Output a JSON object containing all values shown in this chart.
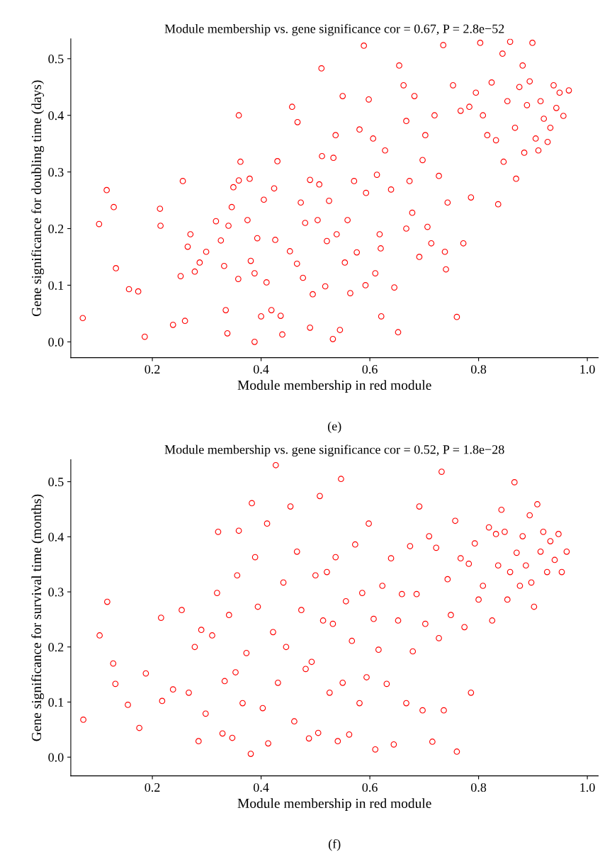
{
  "chart_data": [
    {
      "type": "scatter",
      "title": "Module membership vs. gene significance cor = 0.67, P = 2.8e−52",
      "xlabel": "Module membership in red module",
      "ylabel": "Gene significance for doubling time (days)",
      "annotations": [
        "(e)"
      ],
      "marker": "circle",
      "grid": false,
      "legend": false,
      "xlim": [
        0.05,
        1.02
      ],
      "ylim": [
        -0.028,
        0.535
      ],
      "xticks": [
        0.2,
        0.4,
        0.6,
        0.8,
        {
          "value": 1.0,
          "label": "1.0"
        }
      ],
      "yticks": [
        {
          "value": 0.0,
          "label": "0.0"
        },
        0.1,
        0.2,
        0.3,
        0.4,
        0.5
      ],
      "series": [
        {
          "color": "#ff0000",
          "x": [
            0.072,
            0.102,
            0.116,
            0.129,
            0.133,
            0.157,
            0.174,
            0.186,
            0.214,
            0.215,
            0.238,
            0.252,
            0.256,
            0.26,
            0.27,
            0.265,
            0.278,
            0.287,
            0.299,
            0.317,
            0.326,
            0.332,
            0.335,
            0.338,
            0.34,
            0.346,
            0.349,
            0.358,
            0.359,
            0.359,
            0.362,
            0.375,
            0.379,
            0.381,
            0.388,
            0.388,
            0.393,
            0.4,
            0.405,
            0.41,
            0.419,
            0.424,
            0.426,
            0.43,
            0.436,
            0.439,
            0.453,
            0.457,
            0.466,
            0.467,
            0.473,
            0.477,
            0.481,
            0.49,
            0.49,
            0.495,
            0.504,
            0.507,
            0.511,
            0.512,
            0.518,
            0.521,
            0.525,
            0.532,
            0.533,
            0.537,
            0.539,
            0.545,
            0.55,
            0.554,
            0.559,
            0.564,
            0.571,
            0.576,
            0.581,
            0.589,
            0.592,
            0.593,
            0.598,
            0.606,
            0.61,
            0.613,
            0.618,
            0.62,
            0.621,
            0.628,
            0.639,
            0.645,
            0.652,
            0.654,
            0.662,
            0.667,
            0.667,
            0.673,
            0.678,
            0.682,
            0.691,
            0.697,
            0.702,
            0.706,
            0.713,
            0.719,
            0.727,
            0.735,
            0.738,
            0.74,
            0.743,
            0.753,
            0.76,
            0.767,
            0.772,
            0.783,
            0.786,
            0.795,
            0.803,
            0.808,
            0.816,
            0.824,
            0.832,
            0.836,
            0.844,
            0.846,
            0.853,
            0.858,
            0.867,
            0.869,
            0.875,
            0.881,
            0.884,
            0.889,
            0.894,
            0.899,
            0.905,
            0.91,
            0.914,
            0.92,
            0.927,
            0.932,
            0.938,
            0.943,
            0.949,
            0.956,
            0.966
          ],
          "values": [
            0.042,
            0.208,
            0.268,
            0.238,
            0.13,
            0.093,
            0.089,
            0.009,
            0.235,
            0.205,
            0.03,
            0.116,
            0.284,
            0.037,
            0.19,
            0.168,
            0.124,
            0.14,
            0.159,
            0.213,
            0.179,
            0.134,
            0.056,
            0.015,
            0.205,
            0.238,
            0.273,
            0.111,
            0.4,
            0.285,
            0.318,
            0.215,
            0.288,
            0.143,
            0.0,
            0.121,
            0.183,
            0.045,
            0.251,
            0.105,
            0.056,
            0.271,
            0.18,
            0.319,
            0.046,
            0.013,
            0.16,
            0.415,
            0.138,
            0.388,
            0.246,
            0.113,
            0.21,
            0.286,
            0.025,
            0.084,
            0.215,
            0.278,
            0.483,
            0.328,
            0.098,
            0.178,
            0.249,
            0.005,
            0.325,
            0.365,
            0.19,
            0.021,
            0.434,
            0.14,
            0.215,
            0.086,
            0.284,
            0.158,
            0.375,
            0.523,
            0.1,
            0.263,
            0.428,
            0.359,
            0.121,
            0.295,
            0.19,
            0.165,
            0.045,
            0.338,
            0.269,
            0.096,
            0.017,
            0.488,
            0.453,
            0.2,
            0.39,
            0.284,
            0.228,
            0.434,
            0.15,
            0.321,
            0.365,
            0.203,
            0.174,
            0.4,
            0.293,
            0.524,
            0.159,
            0.128,
            0.246,
            0.453,
            0.044,
            0.408,
            0.174,
            0.415,
            0.255,
            0.44,
            0.528,
            0.4,
            0.365,
            0.458,
            0.356,
            0.243,
            0.509,
            0.318,
            0.425,
            0.53,
            0.378,
            0.288,
            0.45,
            0.488,
            0.334,
            0.418,
            0.46,
            0.528,
            0.359,
            0.338,
            0.425,
            0.394,
            0.353,
            0.378,
            0.453,
            0.413,
            0.44,
            0.399,
            0.444
          ]
        }
      ]
    },
    {
      "type": "scatter",
      "title": "Module membership vs. gene significance cor = 0.52, P = 1.8e−28",
      "xlabel": "Module membership in red module",
      "ylabel": "Gene significance for survival time (months)",
      "annotations": [
        "(f)"
      ],
      "marker": "circle",
      "grid": false,
      "legend": false,
      "xlim": [
        0.05,
        1.02
      ],
      "ylim": [
        -0.034,
        0.54
      ],
      "xticks": [
        0.2,
        0.4,
        0.6,
        0.8,
        {
          "value": 1.0,
          "label": "1.0"
        }
      ],
      "yticks": [
        {
          "value": 0.0,
          "label": "0.0"
        },
        0.1,
        0.2,
        0.3,
        0.4,
        0.5
      ],
      "series": [
        {
          "color": "#ff0000",
          "x": [
            0.073,
            0.103,
            0.117,
            0.128,
            0.132,
            0.155,
            0.176,
            0.188,
            0.216,
            0.218,
            0.238,
            0.254,
            0.267,
            0.278,
            0.285,
            0.29,
            0.298,
            0.31,
            0.319,
            0.321,
            0.329,
            0.333,
            0.341,
            0.347,
            0.353,
            0.356,
            0.359,
            0.366,
            0.373,
            0.381,
            0.383,
            0.389,
            0.394,
            0.403,
            0.411,
            0.413,
            0.422,
            0.427,
            0.431,
            0.441,
            0.446,
            0.454,
            0.461,
            0.466,
            0.474,
            0.482,
            0.488,
            0.493,
            0.5,
            0.505,
            0.508,
            0.514,
            0.521,
            0.526,
            0.532,
            0.537,
            0.541,
            0.547,
            0.55,
            0.556,
            0.562,
            0.567,
            0.573,
            0.581,
            0.586,
            0.594,
            0.598,
            0.607,
            0.61,
            0.616,
            0.623,
            0.631,
            0.639,
            0.644,
            0.652,
            0.659,
            0.667,
            0.674,
            0.679,
            0.686,
            0.691,
            0.697,
            0.702,
            0.709,
            0.715,
            0.722,
            0.727,
            0.732,
            0.736,
            0.743,
            0.749,
            0.757,
            0.76,
            0.767,
            0.774,
            0.782,
            0.786,
            0.793,
            0.8,
            0.808,
            0.819,
            0.825,
            0.832,
            0.836,
            0.842,
            0.848,
            0.853,
            0.858,
            0.866,
            0.87,
            0.876,
            0.881,
            0.887,
            0.894,
            0.897,
            0.902,
            0.908,
            0.914,
            0.919,
            0.926,
            0.932,
            0.94,
            0.947,
            0.953,
            0.962
          ],
          "values": [
            0.068,
            0.221,
            0.282,
            0.17,
            0.133,
            0.095,
            0.053,
            0.152,
            0.253,
            0.102,
            0.123,
            0.267,
            0.117,
            0.2,
            0.029,
            0.231,
            0.079,
            0.221,
            0.298,
            0.409,
            0.043,
            0.138,
            0.258,
            0.035,
            0.154,
            0.33,
            0.411,
            0.098,
            0.189,
            0.006,
            0.461,
            0.363,
            0.273,
            0.089,
            0.424,
            0.025,
            0.227,
            0.53,
            0.135,
            0.317,
            0.2,
            0.455,
            0.065,
            0.373,
            0.267,
            0.16,
            0.034,
            0.173,
            0.33,
            0.044,
            0.474,
            0.248,
            0.336,
            0.117,
            0.242,
            0.363,
            0.029,
            0.505,
            0.135,
            0.283,
            0.041,
            0.211,
            0.386,
            0.098,
            0.298,
            0.145,
            0.424,
            0.251,
            0.014,
            0.195,
            0.311,
            0.133,
            0.361,
            0.023,
            0.248,
            0.296,
            0.098,
            0.383,
            0.192,
            0.296,
            0.455,
            0.085,
            0.242,
            0.401,
            0.028,
            0.38,
            0.216,
            0.518,
            0.085,
            0.323,
            0.258,
            0.429,
            0.01,
            0.361,
            0.236,
            0.351,
            0.117,
            0.388,
            0.286,
            0.311,
            0.417,
            0.248,
            0.405,
            0.348,
            0.449,
            0.409,
            0.286,
            0.336,
            0.499,
            0.371,
            0.311,
            0.401,
            0.348,
            0.439,
            0.317,
            0.273,
            0.459,
            0.373,
            0.409,
            0.336,
            0.392,
            0.358,
            0.405,
            0.336,
            0.373
          ]
        }
      ]
    }
  ]
}
